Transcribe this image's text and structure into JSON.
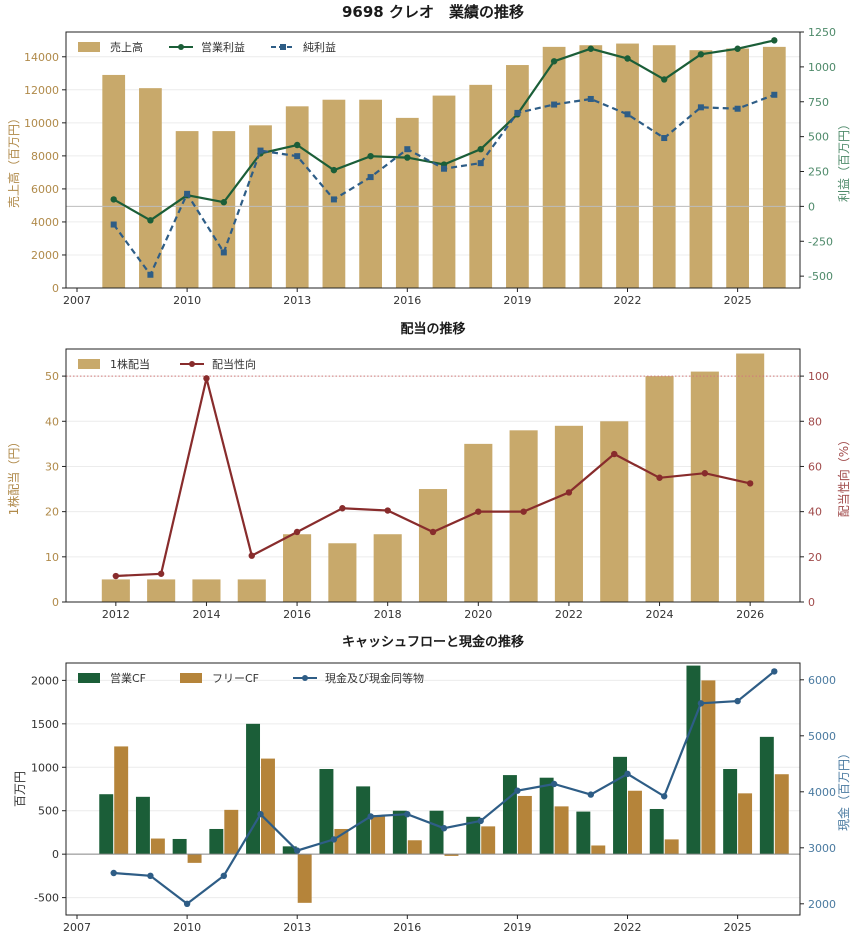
{
  "colors": {
    "gold_bar": "#c8a96b",
    "green": "#1b5e38",
    "navy": "#2e5d86",
    "maroon": "#882c2c",
    "fcf_bar": "#b5843a",
    "sales_axis": "#b08a4a",
    "profit_axis": "#4e8a6a",
    "payout_axis": "#a04a4a",
    "cash_axis": "#4a7aa0"
  },
  "chart_data": [
    {
      "type": "bar",
      "title": "9698 クレオ　業績の推移",
      "ylabel": "売上高（百万円）",
      "y2label": "利益（百万円）",
      "xlim": [
        2006.7,
        2026.7
      ],
      "ylim": [
        0,
        15500
      ],
      "y2lim": [
        -585,
        1250
      ],
      "x_ticks": [
        2007,
        2010,
        2013,
        2016,
        2019,
        2022,
        2025
      ],
      "y_ticks": [
        0,
        2000,
        4000,
        6000,
        8000,
        10000,
        12000,
        14000
      ],
      "y2_ticks": [
        -500,
        -250,
        0,
        250,
        500,
        750,
        1000,
        1250
      ],
      "x": [
        2008,
        2009,
        2010,
        2011,
        2012,
        2013,
        2014,
        2015,
        2016,
        2017,
        2018,
        2019,
        2020,
        2021,
        2022,
        2023,
        2024,
        2025,
        2026
      ],
      "legend_position": "top-left",
      "series": [
        {
          "name": "売上高",
          "type": "bar",
          "axis": "left",
          "values": [
            12900,
            12100,
            9500,
            9500,
            9850,
            11000,
            11400,
            11400,
            10300,
            11650,
            12300,
            13500,
            14600,
            14700,
            14800,
            14700,
            14400,
            14500,
            14600
          ]
        },
        {
          "name": "営業利益",
          "type": "line",
          "axis": "right",
          "values": [
            50,
            -100,
            80,
            30,
            380,
            440,
            260,
            360,
            350,
            300,
            410,
            660,
            1040,
            1130,
            1060,
            910,
            1090,
            1130,
            1190
          ]
        },
        {
          "name": "純利益",
          "type": "line",
          "axis": "right",
          "dashed": true,
          "values": [
            -130,
            -490,
            90,
            -330,
            400,
            360,
            50,
            210,
            410,
            270,
            310,
            670,
            730,
            770,
            660,
            490,
            710,
            700,
            800
          ]
        }
      ]
    },
    {
      "type": "bar",
      "title": "配当の推移",
      "ylabel": "1株配当（円）",
      "y2label": "配当性向（%）",
      "xlim": [
        2010.9,
        2027.1
      ],
      "ylim": [
        0,
        56
      ],
      "y2lim": [
        0,
        112
      ],
      "x_ticks": [
        2012,
        2014,
        2016,
        2018,
        2020,
        2022,
        2024,
        2026
      ],
      "y_ticks": [
        0,
        10,
        20,
        30,
        40,
        50
      ],
      "y2_ticks": [
        0,
        20,
        40,
        60,
        80,
        100
      ],
      "reference_line_y2": 100,
      "x": [
        2012,
        2013,
        2014,
        2015,
        2016,
        2017,
        2018,
        2019,
        2020,
        2021,
        2022,
        2023,
        2024,
        2025,
        2026
      ],
      "legend_position": "top-left",
      "series": [
        {
          "name": "1株配当",
          "type": "bar",
          "axis": "left",
          "values": [
            5,
            5,
            5,
            5,
            15,
            13,
            15,
            25,
            35,
            38,
            39,
            40,
            50,
            51,
            55
          ]
        },
        {
          "name": "配当性向",
          "type": "line",
          "axis": "right",
          "values": [
            11.5,
            12.5,
            99,
            20.5,
            31,
            41.5,
            40.5,
            31,
            40,
            40,
            48.5,
            65.5,
            55,
            57,
            52.5
          ]
        }
      ]
    },
    {
      "type": "bar",
      "title": "キャッシュフローと現金の推移",
      "ylabel": "百万円",
      "y2label": "現金（百万円）",
      "xlim": [
        2006.7,
        2026.7
      ],
      "ylim": [
        -700,
        2200
      ],
      "y2lim": [
        1800,
        6300
      ],
      "x_ticks": [
        2007,
        2010,
        2013,
        2016,
        2019,
        2022,
        2025
      ],
      "y_ticks": [
        -500,
        0,
        500,
        1000,
        1500,
        2000
      ],
      "y2_ticks": [
        2000,
        3000,
        4000,
        5000,
        6000
      ],
      "x": [
        2008,
        2009,
        2010,
        2011,
        2012,
        2013,
        2014,
        2015,
        2016,
        2017,
        2018,
        2019,
        2020,
        2021,
        2022,
        2023,
        2024,
        2025,
        2026
      ],
      "legend_position": "top-left",
      "series": [
        {
          "name": "営業CF",
          "type": "bar",
          "axis": "left",
          "values": [
            690,
            660,
            175,
            290,
            1500,
            90,
            980,
            780,
            500,
            500,
            430,
            910,
            880,
            490,
            1120,
            520,
            2170,
            980,
            1350
          ]
        },
        {
          "name": "フリーCF",
          "type": "bar",
          "axis": "left",
          "values": [
            1240,
            180,
            -100,
            510,
            1100,
            -560,
            290,
            450,
            160,
            -20,
            320,
            670,
            550,
            100,
            730,
            170,
            2000,
            700,
            920
          ]
        },
        {
          "name": "現金及び現金同等物",
          "type": "line",
          "axis": "right",
          "values": [
            2550,
            2500,
            2000,
            2500,
            3600,
            2950,
            3150,
            3560,
            3600,
            3350,
            3480,
            4020,
            4140,
            3950,
            4320,
            3920,
            5580,
            5620,
            6150
          ]
        }
      ]
    }
  ]
}
